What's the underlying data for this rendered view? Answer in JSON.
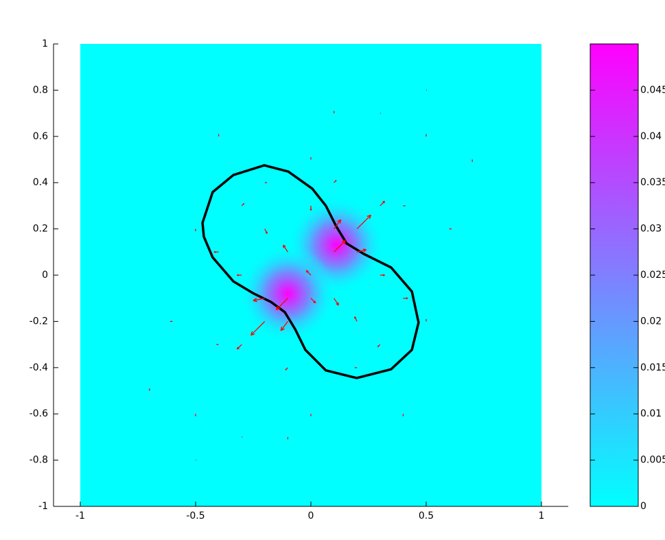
{
  "chart_data": {
    "type": "field",
    "xlim": [
      -1.116,
      1.116
    ],
    "ylim": [
      -1,
      1
    ],
    "xticks": [
      -1,
      -0.5,
      0,
      0.5,
      1
    ],
    "yticks": [
      -1,
      -0.8,
      -0.6,
      -0.4,
      -0.2,
      0,
      0.2,
      0.4,
      0.6,
      0.8,
      1
    ],
    "image_extent": {
      "x": [
        -1,
        1
      ],
      "y": [
        -1,
        1
      ]
    },
    "clim": [
      0,
      0.05
    ],
    "cticks": [
      0,
      0.005,
      0.01,
      0.015,
      0.02,
      0.025,
      0.03,
      0.035,
      0.04,
      0.045
    ],
    "colormap": [
      "#00ffff",
      "#ff00ff"
    ],
    "hotspots": [
      {
        "x": 0.11,
        "y": 0.13,
        "value": 0.05
      },
      {
        "x": -0.1,
        "y": -0.08,
        "value": 0.05
      }
    ],
    "contour": {
      "color": "#000000",
      "x": [
        -0.47,
        -0.426,
        -0.336,
        -0.202,
        -0.098,
        0.006,
        0.065,
        0.11,
        0.155,
        0.229,
        0.348,
        0.438,
        0.467,
        0.438,
        0.348,
        0.199,
        0.065,
        -0.024,
        -0.068,
        -0.113,
        -0.173,
        -0.247,
        -0.336,
        -0.426,
        -0.464
      ],
      "y": [
        0.226,
        0.359,
        0.433,
        0.475,
        0.448,
        0.374,
        0.3,
        0.211,
        0.137,
        0.092,
        0.033,
        -0.071,
        -0.205,
        -0.323,
        -0.407,
        -0.445,
        -0.412,
        -0.323,
        -0.234,
        -0.16,
        -0.116,
        -0.08,
        -0.027,
        0.077,
        0.166
      ]
    },
    "arrows": {
      "color": "#ff0000",
      "x": [
        0.1,
        0.2,
        0.0,
        0.2,
        0.1,
        0.3,
        -0.1,
        -0.2,
        0.0,
        -0.2,
        -0.1,
        -0.3,
        -0.1,
        0.1,
        -0.3,
        0.3,
        -0.2,
        0.2,
        0.0,
        -0.3,
        0.3,
        -0.4,
        0.4,
        -0.5,
        0.5,
        0.1,
        -0.1,
        0.2,
        -0.2,
        0.0,
        -0.4,
        0.4,
        -0.6,
        0.6,
        -0.7,
        0.7,
        -0.5,
        0.5,
        -0.4,
        0.4,
        0.0,
        0.1,
        -0.1,
        0.3,
        -0.3,
        0.5,
        -0.5
      ],
      "y": [
        0.1,
        0.2,
        0.0,
        0.1,
        0.2,
        0.3,
        -0.1,
        -0.2,
        -0.1,
        -0.1,
        -0.2,
        -0.3,
        0.1,
        -0.1,
        0.0,
        0.0,
        0.2,
        -0.2,
        0.3,
        0.3,
        -0.3,
        0.1,
        -0.1,
        0.2,
        -0.2,
        0.4,
        -0.4,
        -0.4,
        0.4,
        0.5,
        -0.3,
        0.3,
        -0.2,
        0.2,
        -0.5,
        0.5,
        -0.6,
        0.6,
        0.6,
        -0.6,
        -0.6,
        0.7,
        -0.7,
        0.7,
        -0.7,
        0.8,
        -0.8
      ],
      "u": [
        0.05,
        0.06,
        -0.02,
        0.04,
        0.03,
        0.02,
        -0.05,
        -0.06,
        0.02,
        -0.05,
        -0.03,
        -0.02,
        -0.02,
        0.02,
        -0.02,
        0.02,
        0.01,
        -0.01,
        0.0,
        0.01,
        -0.01,
        -0.02,
        0.02,
        0.0,
        0.0,
        0.01,
        -0.01,
        -0.01,
        0.01,
        0.0,
        -0.01,
        0.01,
        -0.01,
        0.01,
        0.0,
        0.0,
        0.0,
        0.0,
        0.0,
        0.0,
        0.0,
        0.0,
        0.0,
        0.0,
        0.0,
        0.0,
        0.0
      ],
      "v": [
        0.05,
        0.06,
        0.02,
        0.01,
        0.04,
        0.02,
        -0.05,
        -0.06,
        -0.02,
        -0.01,
        -0.04,
        -0.02,
        0.03,
        -0.03,
        0.0,
        0.0,
        -0.02,
        0.02,
        -0.02,
        0.01,
        -0.01,
        0.0,
        0.0,
        -0.01,
        0.01,
        0.01,
        -0.01,
        0.0,
        0.0,
        0.01,
        0.0,
        0.0,
        0.0,
        0.0,
        0.01,
        -0.01,
        -0.01,
        0.01,
        0.01,
        -0.01,
        -0.01,
        0.01,
        -0.01,
        0.0,
        0.0,
        0.0,
        0.0
      ]
    }
  }
}
